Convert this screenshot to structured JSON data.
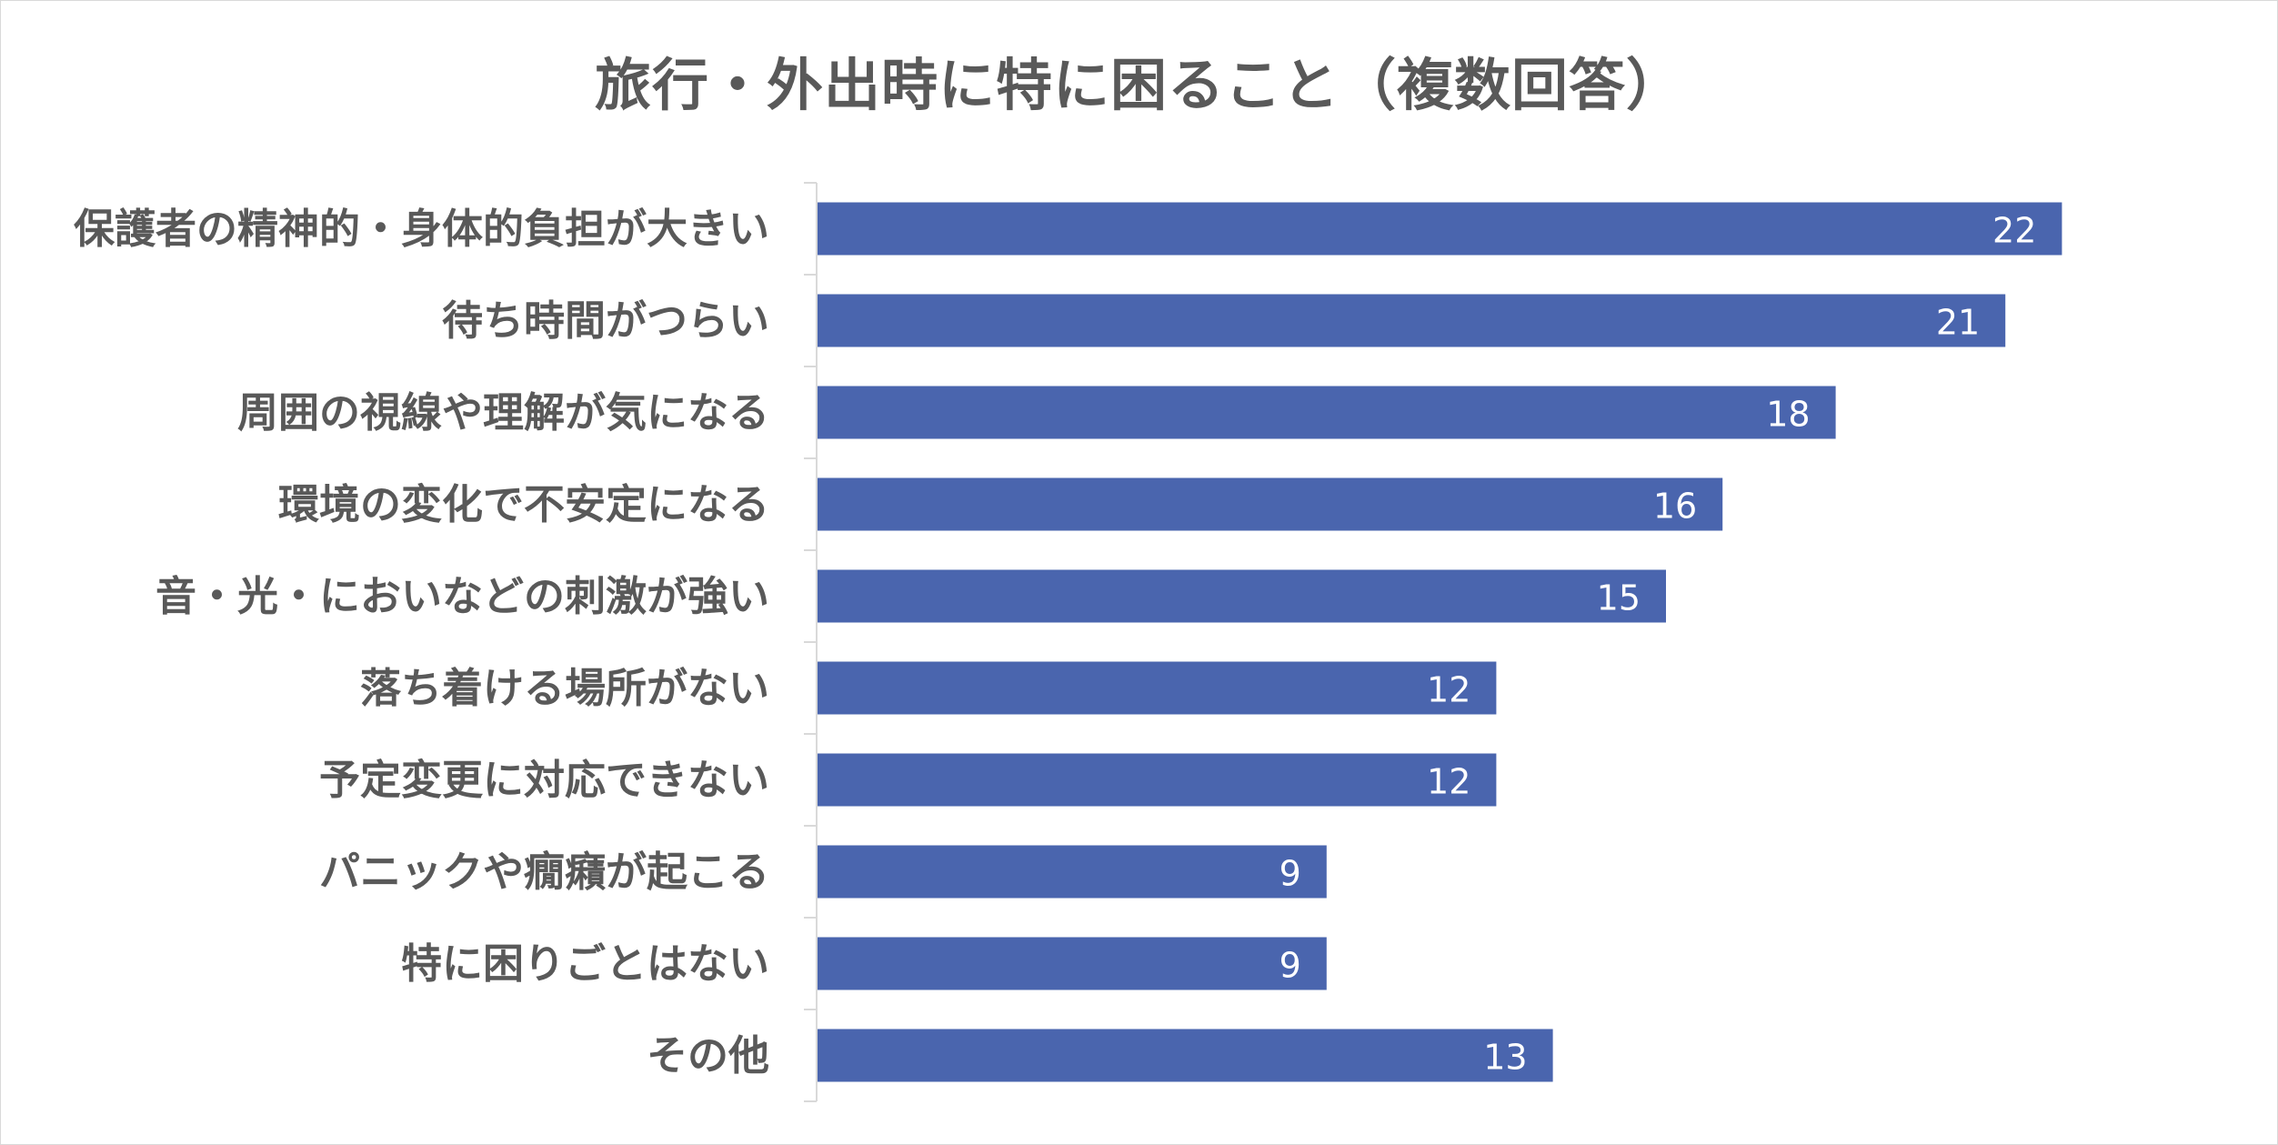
{
  "chart_data": {
    "type": "bar",
    "orientation": "horizontal",
    "title": "旅行・外出時に特に困ること（複数回答）",
    "xlabel": "",
    "ylabel": "",
    "categories": [
      "保護者の精神的・身体的負担が大きい",
      "待ち時間がつらい",
      "周囲の視線や理解が気になる",
      "環境の変化で不安定になる",
      "音・光・においなどの刺激が強い",
      "落ち着ける場所がない",
      "予定変更に対応できない",
      "パニックや癇癪が起こる",
      "特に困りごとはない",
      "その他"
    ],
    "values": [
      22,
      21,
      18,
      16,
      15,
      12,
      12,
      9,
      9,
      13
    ],
    "xlim": [
      0,
      25
    ],
    "grid": false,
    "legend": "none",
    "data_labels": "inside-end",
    "colors": {
      "bar": "#4a65ae",
      "label_text": "#595959",
      "axis": "#d9d9d9"
    }
  }
}
